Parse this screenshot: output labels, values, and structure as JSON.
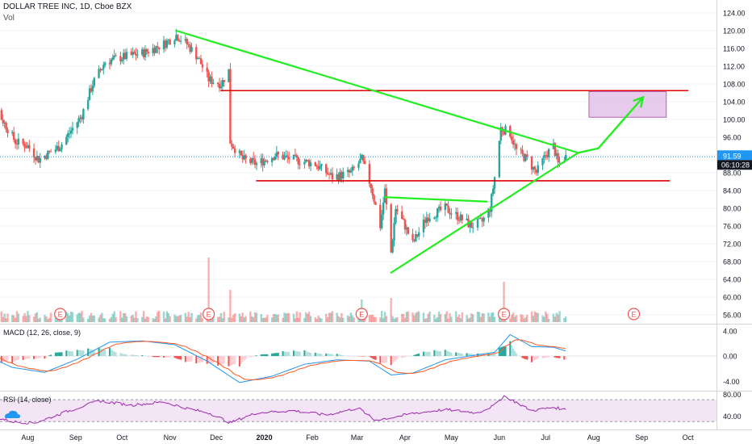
{
  "header": {
    "symbol_line": "DOLLAR TREE INC, 1D, Cboe BZX",
    "vol_label": "Vol"
  },
  "panes": {
    "macd_label": "MACD (12, 26, close, 9)",
    "rsi_label": "RSI (14, close)"
  },
  "price_badges": {
    "last_price": "91.59",
    "countdown": "06:10:28"
  },
  "colors": {
    "up": "#26a69a",
    "down": "#ef5350",
    "trend_green": "#22ee22",
    "level_red": "#e00000",
    "target_box_fill": "#e1bee7",
    "target_box_stroke": "#b060b0",
    "macd_line": "#2196f3",
    "signal_line": "#ff5722",
    "rsi_line": "#9c27b0",
    "rsi_band": "#f3e5f5",
    "axis_text": "#131722",
    "badge_blue": "#2196f3",
    "badge_dark": "#131722"
  },
  "chart_data": {
    "type": "candlestick",
    "title": "DOLLAR TREE INC, 1D, Cboe BZX",
    "x_ticks": [
      "Aug",
      "Sep",
      "Oct",
      "Nov",
      "Dec",
      "2020",
      "Feb",
      "Mar",
      "Apr",
      "May",
      "Jun",
      "Jul",
      "Aug",
      "Sep",
      "Oct"
    ],
    "price_axis": {
      "ticks": [
        56,
        60,
        64,
        68,
        72,
        76,
        80,
        84,
        88,
        92,
        96,
        100,
        104,
        108,
        112,
        116,
        120,
        124
      ],
      "ylim": [
        54,
        126
      ]
    },
    "price_path": [
      {
        "date": "2019-07-01",
        "close": 107
      },
      {
        "date": "2019-07-12",
        "close": 102
      },
      {
        "date": "2019-07-24",
        "close": 95
      },
      {
        "date": "2019-08-01",
        "close": 94
      },
      {
        "date": "2019-08-08",
        "close": 91
      },
      {
        "date": "2019-08-22",
        "close": 94
      },
      {
        "date": "2019-09-05",
        "close": 101
      },
      {
        "date": "2019-09-12",
        "close": 108
      },
      {
        "date": "2019-09-20",
        "close": 113
      },
      {
        "date": "2019-10-01",
        "close": 114
      },
      {
        "date": "2019-10-15",
        "close": 115
      },
      {
        "date": "2019-10-28",
        "close": 117
      },
      {
        "date": "2019-11-05",
        "close": 119
      },
      {
        "date": "2019-11-12",
        "close": 117
      },
      {
        "date": "2019-11-19",
        "close": 114
      },
      {
        "date": "2019-11-26",
        "close": 109
      },
      {
        "date": "2019-12-04",
        "close": 108
      },
      {
        "date": "2019-12-09",
        "close": 111
      },
      {
        "date": "2019-12-10",
        "close": 95
      },
      {
        "date": "2019-12-18",
        "close": 91
      },
      {
        "date": "2019-12-27",
        "close": 90
      },
      {
        "date": "2020-01-08",
        "close": 92
      },
      {
        "date": "2020-01-20",
        "close": 91
      },
      {
        "date": "2020-02-03",
        "close": 90
      },
      {
        "date": "2020-02-14",
        "close": 87
      },
      {
        "date": "2020-02-26",
        "close": 88
      },
      {
        "date": "2020-03-04",
        "close": 91
      },
      {
        "date": "2020-03-10",
        "close": 85
      },
      {
        "date": "2020-03-16",
        "close": 76
      },
      {
        "date": "2020-03-19",
        "close": 84
      },
      {
        "date": "2020-03-23",
        "close": 70
      },
      {
        "date": "2020-03-26",
        "close": 80
      },
      {
        "date": "2020-04-01",
        "close": 76
      },
      {
        "date": "2020-04-06",
        "close": 72
      },
      {
        "date": "2020-04-15",
        "close": 78
      },
      {
        "date": "2020-04-27",
        "close": 80
      },
      {
        "date": "2020-05-06",
        "close": 78
      },
      {
        "date": "2020-05-14",
        "close": 76
      },
      {
        "date": "2020-05-21",
        "close": 77
      },
      {
        "date": "2020-05-26",
        "close": 80
      },
      {
        "date": "2020-05-29",
        "close": 87
      },
      {
        "date": "2020-06-02",
        "close": 98
      },
      {
        "date": "2020-06-08",
        "close": 97
      },
      {
        "date": "2020-06-12",
        "close": 93
      },
      {
        "date": "2020-06-19",
        "close": 91
      },
      {
        "date": "2020-06-25",
        "close": 88
      },
      {
        "date": "2020-07-01",
        "close": 92
      },
      {
        "date": "2020-07-06",
        "close": 94
      },
      {
        "date": "2020-07-09",
        "close": 90
      },
      {
        "date": "2020-07-14",
        "close": 91.59
      }
    ],
    "earnings_markers": [
      {
        "date": "2019-08-22",
        "label": "E"
      },
      {
        "date": "2019-11-26",
        "label": "E"
      },
      {
        "date": "2020-03-04",
        "label": "E"
      },
      {
        "date": "2020-06-04",
        "label": "E"
      },
      {
        "date": "2020-08-27",
        "label": "E"
      }
    ],
    "drawings": {
      "descending_trendline": [
        {
          "date": "2019-11-05",
          "price": 120
        },
        {
          "date": "2020-07-22",
          "price": 92.5
        }
      ],
      "ascending_trendline": [
        {
          "date": "2020-03-23",
          "price": 65.5
        },
        {
          "date": "2020-07-22",
          "price": 92.5
        }
      ],
      "triangle_top": [
        {
          "date": "2020-03-19",
          "price": 82.5
        },
        {
          "date": "2020-05-24",
          "price": 81.5
        }
      ],
      "resistance_level": {
        "price": 106.5,
        "from": "2019-12-04",
        "to": "2020-10-01"
      },
      "support_level": {
        "price": 86.2,
        "from": "2019-12-27",
        "to": "2020-09-19"
      },
      "projection_arrow": [
        {
          "date": "2020-07-22",
          "price": 92.5
        },
        {
          "date": "2020-08-04",
          "price": 93.5
        },
        {
          "date": "2020-09-02",
          "price": 105
        }
      ],
      "target_box": {
        "x_range": [
          "2020-07-29",
          "2020-09-17"
        ],
        "y_range": [
          100.5,
          106.3
        ]
      }
    },
    "macd": {
      "name": "MACD (12, 26, close, 9)",
      "ylim": [
        -5.5,
        5
      ],
      "ticks": [
        4.0,
        0.0,
        -4.0
      ],
      "path": [
        {
          "date": "2019-07-01",
          "macd": 0.5
        },
        {
          "date": "2019-07-22",
          "macd": -1.8
        },
        {
          "date": "2019-08-12",
          "macd": -2.6
        },
        {
          "date": "2019-09-02",
          "macd": -0.5
        },
        {
          "date": "2019-09-23",
          "macd": 2.2
        },
        {
          "date": "2019-10-14",
          "macd": 2.4
        },
        {
          "date": "2019-11-04",
          "macd": 1.8
        },
        {
          "date": "2019-11-25",
          "macd": -0.8
        },
        {
          "date": "2019-12-16",
          "macd": -4.2
        },
        {
          "date": "2020-01-06",
          "macd": -3.2
        },
        {
          "date": "2020-01-27",
          "macd": -1.3
        },
        {
          "date": "2020-02-17",
          "macd": -0.6
        },
        {
          "date": "2020-03-09",
          "macd": -0.8
        },
        {
          "date": "2020-03-23",
          "macd": -3.0
        },
        {
          "date": "2020-04-06",
          "macd": -2.7
        },
        {
          "date": "2020-04-27",
          "macd": -0.6
        },
        {
          "date": "2020-05-18",
          "macd": 0.2
        },
        {
          "date": "2020-05-29",
          "macd": 0.6
        },
        {
          "date": "2020-06-08",
          "macd": 3.4
        },
        {
          "date": "2020-06-22",
          "macd": 1.5
        },
        {
          "date": "2020-07-06",
          "macd": 1.4
        },
        {
          "date": "2020-07-14",
          "macd": 0.8
        }
      ]
    },
    "rsi": {
      "name": "RSI (14, close)",
      "ylim": [
        20,
        85
      ],
      "ticks": [
        80.0,
        40.0
      ],
      "band": [
        30,
        70
      ],
      "path": [
        {
          "date": "2019-07-01",
          "rsi": 45
        },
        {
          "date": "2019-07-22",
          "rsi": 30
        },
        {
          "date": "2019-08-05",
          "rsi": 27
        },
        {
          "date": "2019-08-26",
          "rsi": 48
        },
        {
          "date": "2019-09-16",
          "rsi": 68
        },
        {
          "date": "2019-10-07",
          "rsi": 60
        },
        {
          "date": "2019-10-28",
          "rsi": 66
        },
        {
          "date": "2019-11-11",
          "rsi": 55
        },
        {
          "date": "2019-11-27",
          "rsi": 45
        },
        {
          "date": "2019-12-10",
          "rsi": 28
        },
        {
          "date": "2019-12-27",
          "rsi": 46
        },
        {
          "date": "2020-01-20",
          "rsi": 50
        },
        {
          "date": "2020-02-10",
          "rsi": 42
        },
        {
          "date": "2020-03-02",
          "rsi": 55
        },
        {
          "date": "2020-03-12",
          "rsi": 33
        },
        {
          "date": "2020-03-23",
          "rsi": 37
        },
        {
          "date": "2020-04-06",
          "rsi": 45
        },
        {
          "date": "2020-04-27",
          "rsi": 52
        },
        {
          "date": "2020-05-18",
          "rsi": 46
        },
        {
          "date": "2020-05-29",
          "rsi": 60
        },
        {
          "date": "2020-06-04",
          "rsi": 77
        },
        {
          "date": "2020-06-22",
          "rsi": 50
        },
        {
          "date": "2020-07-06",
          "rsi": 56
        },
        {
          "date": "2020-07-14",
          "rsi": 52
        }
      ]
    }
  }
}
